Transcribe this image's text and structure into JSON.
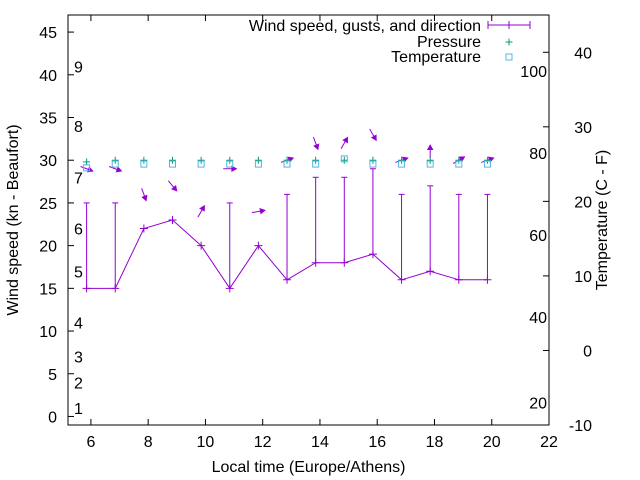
{
  "chart_data": {
    "type": "line",
    "xlabel": "Local time (Europe/Athens)",
    "ylabel": "Wind speed (kn - Beaufort)",
    "y2label": "Temperature (C - F)",
    "xlim": [
      5.2,
      22
    ],
    "ylim": [
      -1,
      47
    ],
    "y2lim": [
      -10,
      45
    ],
    "x_ticks": [
      6,
      8,
      10,
      12,
      14,
      16,
      18,
      20,
      22
    ],
    "y_ticks": [
      0,
      5,
      10,
      15,
      20,
      25,
      30,
      35,
      40,
      45
    ],
    "y2_ticks": [
      -10,
      0,
      10,
      20,
      30,
      40
    ],
    "beaufort_labels": [
      {
        "label": "1",
        "y": 1
      },
      {
        "label": "2",
        "y": 4
      },
      {
        "label": "3",
        "y": 7
      },
      {
        "label": "4",
        "y": 11
      },
      {
        "label": "5",
        "y": 17
      },
      {
        "label": "6",
        "y": 22
      },
      {
        "label": "7",
        "y": 28
      },
      {
        "label": "8",
        "y": 34
      },
      {
        "label": "9",
        "y": 41
      }
    ],
    "fahrenheit_labels": [
      {
        "label": "20",
        "y2": -7
      },
      {
        "label": "40",
        "y2": 4.5
      },
      {
        "label": "60",
        "y2": 15.5
      },
      {
        "label": "80",
        "y2": 26.5
      },
      {
        "label": "100",
        "y2": 37.5
      }
    ],
    "legend": {
      "wind": "Wind speed, gusts, and direction",
      "pressure": "Pressure",
      "temperature": "Temperature",
      "position": "top-right"
    },
    "colors": {
      "wind": "#9400d3",
      "pressure": "#009e73",
      "temperature": "#56b4e9"
    },
    "series": [
      {
        "name": "Wind speed",
        "x": [
          5.85,
          6.85,
          7.85,
          8.85,
          9.85,
          10.85,
          11.85,
          12.85,
          13.85,
          14.85,
          15.85,
          16.85,
          17.85,
          18.85,
          19.85
        ],
        "values": [
          15,
          15,
          22,
          23,
          20,
          15,
          20,
          16,
          18,
          18,
          19,
          16,
          17,
          16,
          16
        ]
      },
      {
        "name": "Gusts",
        "x": [
          5.85,
          6.85,
          7.85,
          8.85,
          9.85,
          10.85,
          11.85,
          12.85,
          13.85,
          14.85,
          15.85,
          16.85,
          17.85,
          18.85,
          19.85
        ],
        "values": [
          25,
          25,
          22,
          23,
          20,
          25,
          20,
          26,
          28,
          28,
          29,
          26,
          27,
          26,
          26
        ]
      },
      {
        "name": "Wind direction",
        "x": [
          5.85,
          6.85,
          7.85,
          8.85,
          9.85,
          10.85,
          11.85,
          12.85,
          13.85,
          14.85,
          15.85,
          16.85,
          17.85,
          18.85,
          19.85
        ],
        "values": [
          290,
          290,
          340,
          320,
          210,
          270,
          260,
          250,
          340,
          210,
          330,
          250,
          180,
          240,
          250
        ]
      },
      {
        "name": "Pressure",
        "x": [
          5.85,
          6.85,
          7.85,
          8.85,
          9.85,
          10.85,
          11.85,
          12.85,
          13.85,
          14.85,
          15.85,
          16.85,
          17.85,
          18.85,
          19.85
        ],
        "values": [
          29.8,
          30,
          30,
          30,
          30,
          30,
          30,
          30,
          30,
          30,
          30,
          30,
          30,
          30,
          30
        ]
      },
      {
        "name": "Temperature",
        "x": [
          5.85,
          6.85,
          7.85,
          8.85,
          9.85,
          10.85,
          11.85,
          12.85,
          13.85,
          14.85,
          15.85,
          16.85,
          17.85,
          18.85,
          19.85
        ],
        "values": [
          24.5,
          25,
          25,
          25,
          25,
          25,
          25,
          25,
          25,
          25.7,
          25,
          25,
          25,
          25,
          25
        ]
      }
    ]
  }
}
